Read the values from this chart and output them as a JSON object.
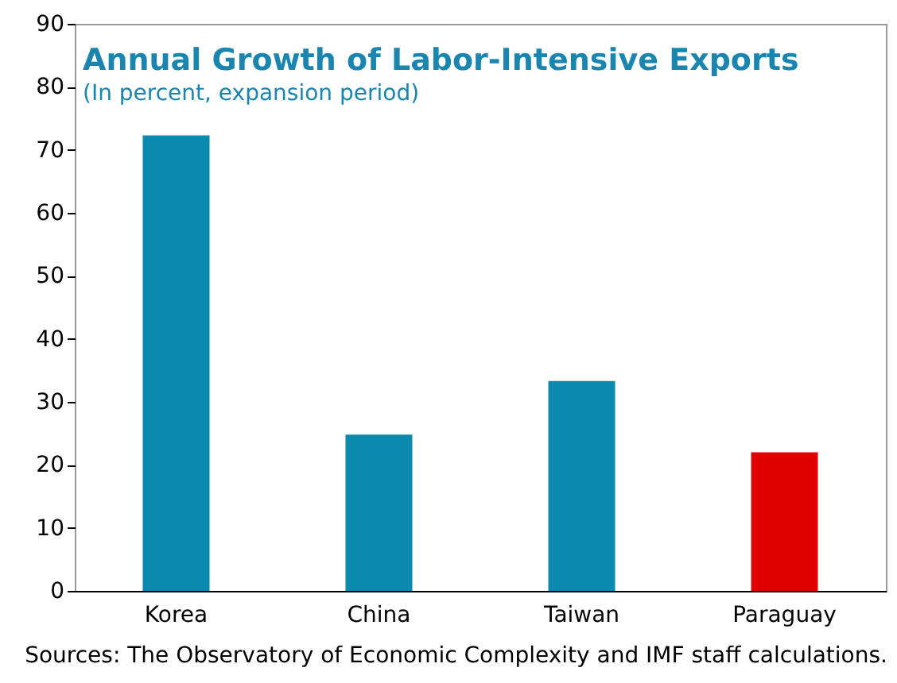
{
  "chart_data": {
    "type": "bar",
    "title": "Annual Growth of Labor-Intensive Exports",
    "subtitle": "(In percent, expansion period)",
    "categories": [
      "Korea",
      "China",
      "Taiwan",
      "Paraguay"
    ],
    "values": [
      72.3,
      24.8,
      33.3,
      22.0
    ],
    "colors": [
      "#0b89ae",
      "#0b89ae",
      "#0b89ae",
      "#e00000"
    ],
    "ylim": [
      0,
      90
    ],
    "yticks": [
      0,
      10,
      20,
      30,
      40,
      50,
      60,
      70,
      80,
      90
    ],
    "grid": false,
    "annotations": [
      "Sources: The Observatory of Economic Complexity and IMF staff calculations."
    ]
  }
}
